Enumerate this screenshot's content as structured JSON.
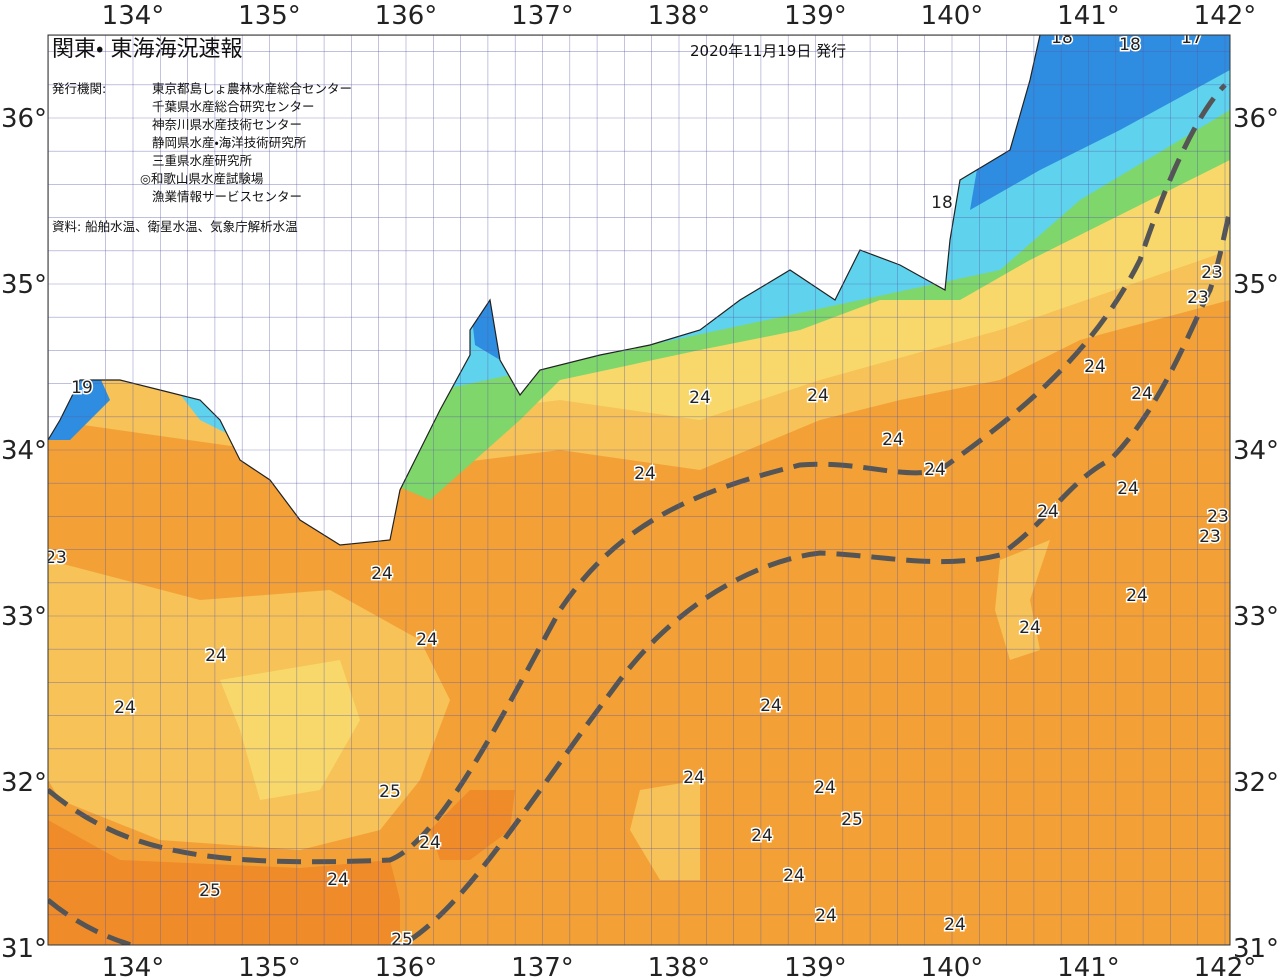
{
  "header": {
    "title": "関東・ 東海海況速報",
    "date": "2020年11月19日 発行"
  },
  "publishers": {
    "label": "発行機関:",
    "items": [
      "東京都島しょ農林水産総合センター",
      "千葉県水産総合研究センター",
      "神奈川県水産技術センター",
      "静岡県水産・海洋技術研究所",
      "三重県水産研究所",
      "◎和歌山県水産試験場",
      "漁業情報サービスセンター"
    ]
  },
  "source": "資料: 船舶水温、衛星水温、気象庁解析水温",
  "axes": {
    "lon_labels": [
      "134°",
      "135°",
      "136°",
      "137°",
      "138°",
      "139°",
      "140°",
      "141°",
      "142°"
    ],
    "lat_labels": [
      "36°",
      "35°",
      "34°",
      "33°",
      "32°",
      "31°"
    ]
  },
  "contour_labels": [
    "18",
    "18",
    "17",
    "18",
    "19",
    "23",
    "23",
    "23",
    "24",
    "24",
    "24",
    "24",
    "24",
    "24",
    "24",
    "24",
    "24",
    "24",
    "24",
    "24",
    "23",
    "23",
    "24",
    "24",
    "24",
    "24",
    "24",
    "24",
    "24",
    "24",
    "25",
    "25",
    "25",
    "25",
    "24",
    "24",
    "24",
    "24"
  ]
}
